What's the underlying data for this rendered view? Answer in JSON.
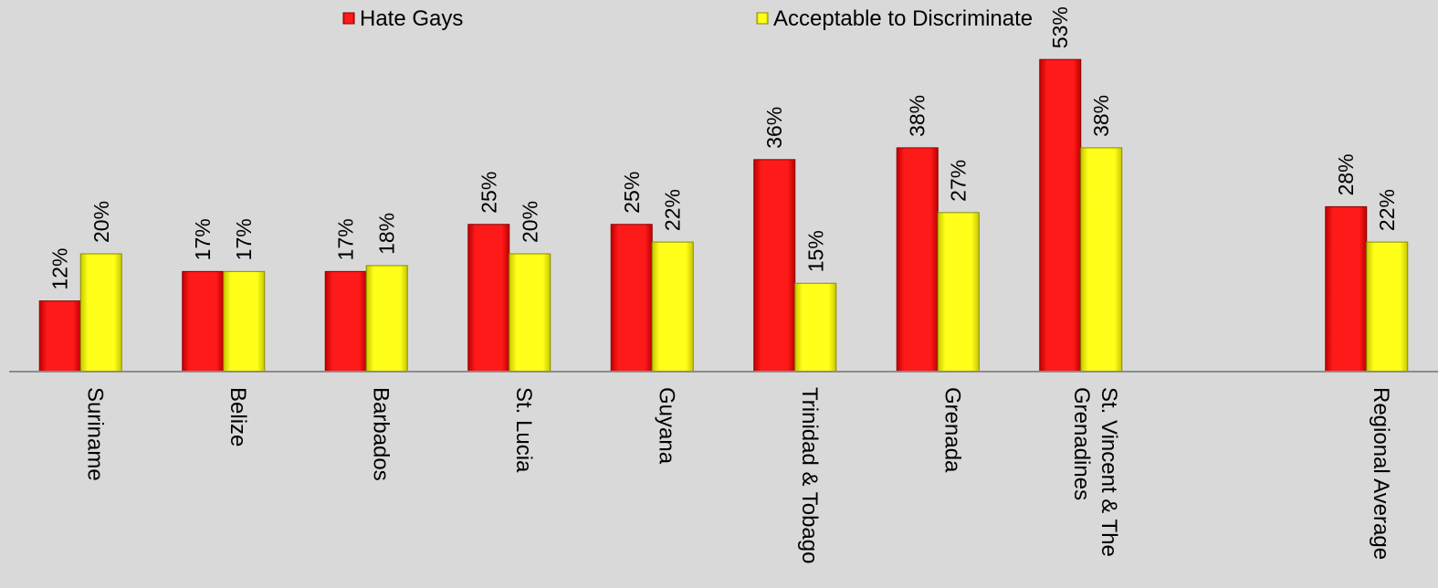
{
  "chart_data": {
    "type": "bar",
    "title": "",
    "xlabel": "",
    "ylabel": "",
    "ylim": [
      0,
      60
    ],
    "grid": false,
    "legend_position": "top",
    "categories": [
      [
        "Suriname"
      ],
      [
        "Belize"
      ],
      [
        "Barbados"
      ],
      [
        "St. Lucia"
      ],
      [
        "Guyana"
      ],
      [
        "Trinidad & Tobago"
      ],
      [
        "Grenada"
      ],
      [
        "St. Vincent & The",
        "Grenadines"
      ],
      [],
      [
        "Regional Average"
      ]
    ],
    "series": [
      {
        "name": "Hate Gays",
        "color": "#ff0000",
        "values": [
          12,
          17,
          17,
          25,
          25,
          36,
          38,
          53,
          null,
          28
        ],
        "labels": [
          "12%",
          "17%",
          "17%",
          "25%",
          "25%",
          "36%",
          "38%",
          "53%",
          "",
          "28%"
        ]
      },
      {
        "name": "Acceptable to Discriminate",
        "color": "#ffff00",
        "values": [
          20,
          17,
          18,
          20,
          22,
          15,
          27,
          38,
          null,
          22
        ],
        "labels": [
          "20%",
          "17%",
          "18%",
          "20%",
          "22%",
          "15%",
          "27%",
          "38%",
          "",
          "22%"
        ]
      }
    ]
  }
}
